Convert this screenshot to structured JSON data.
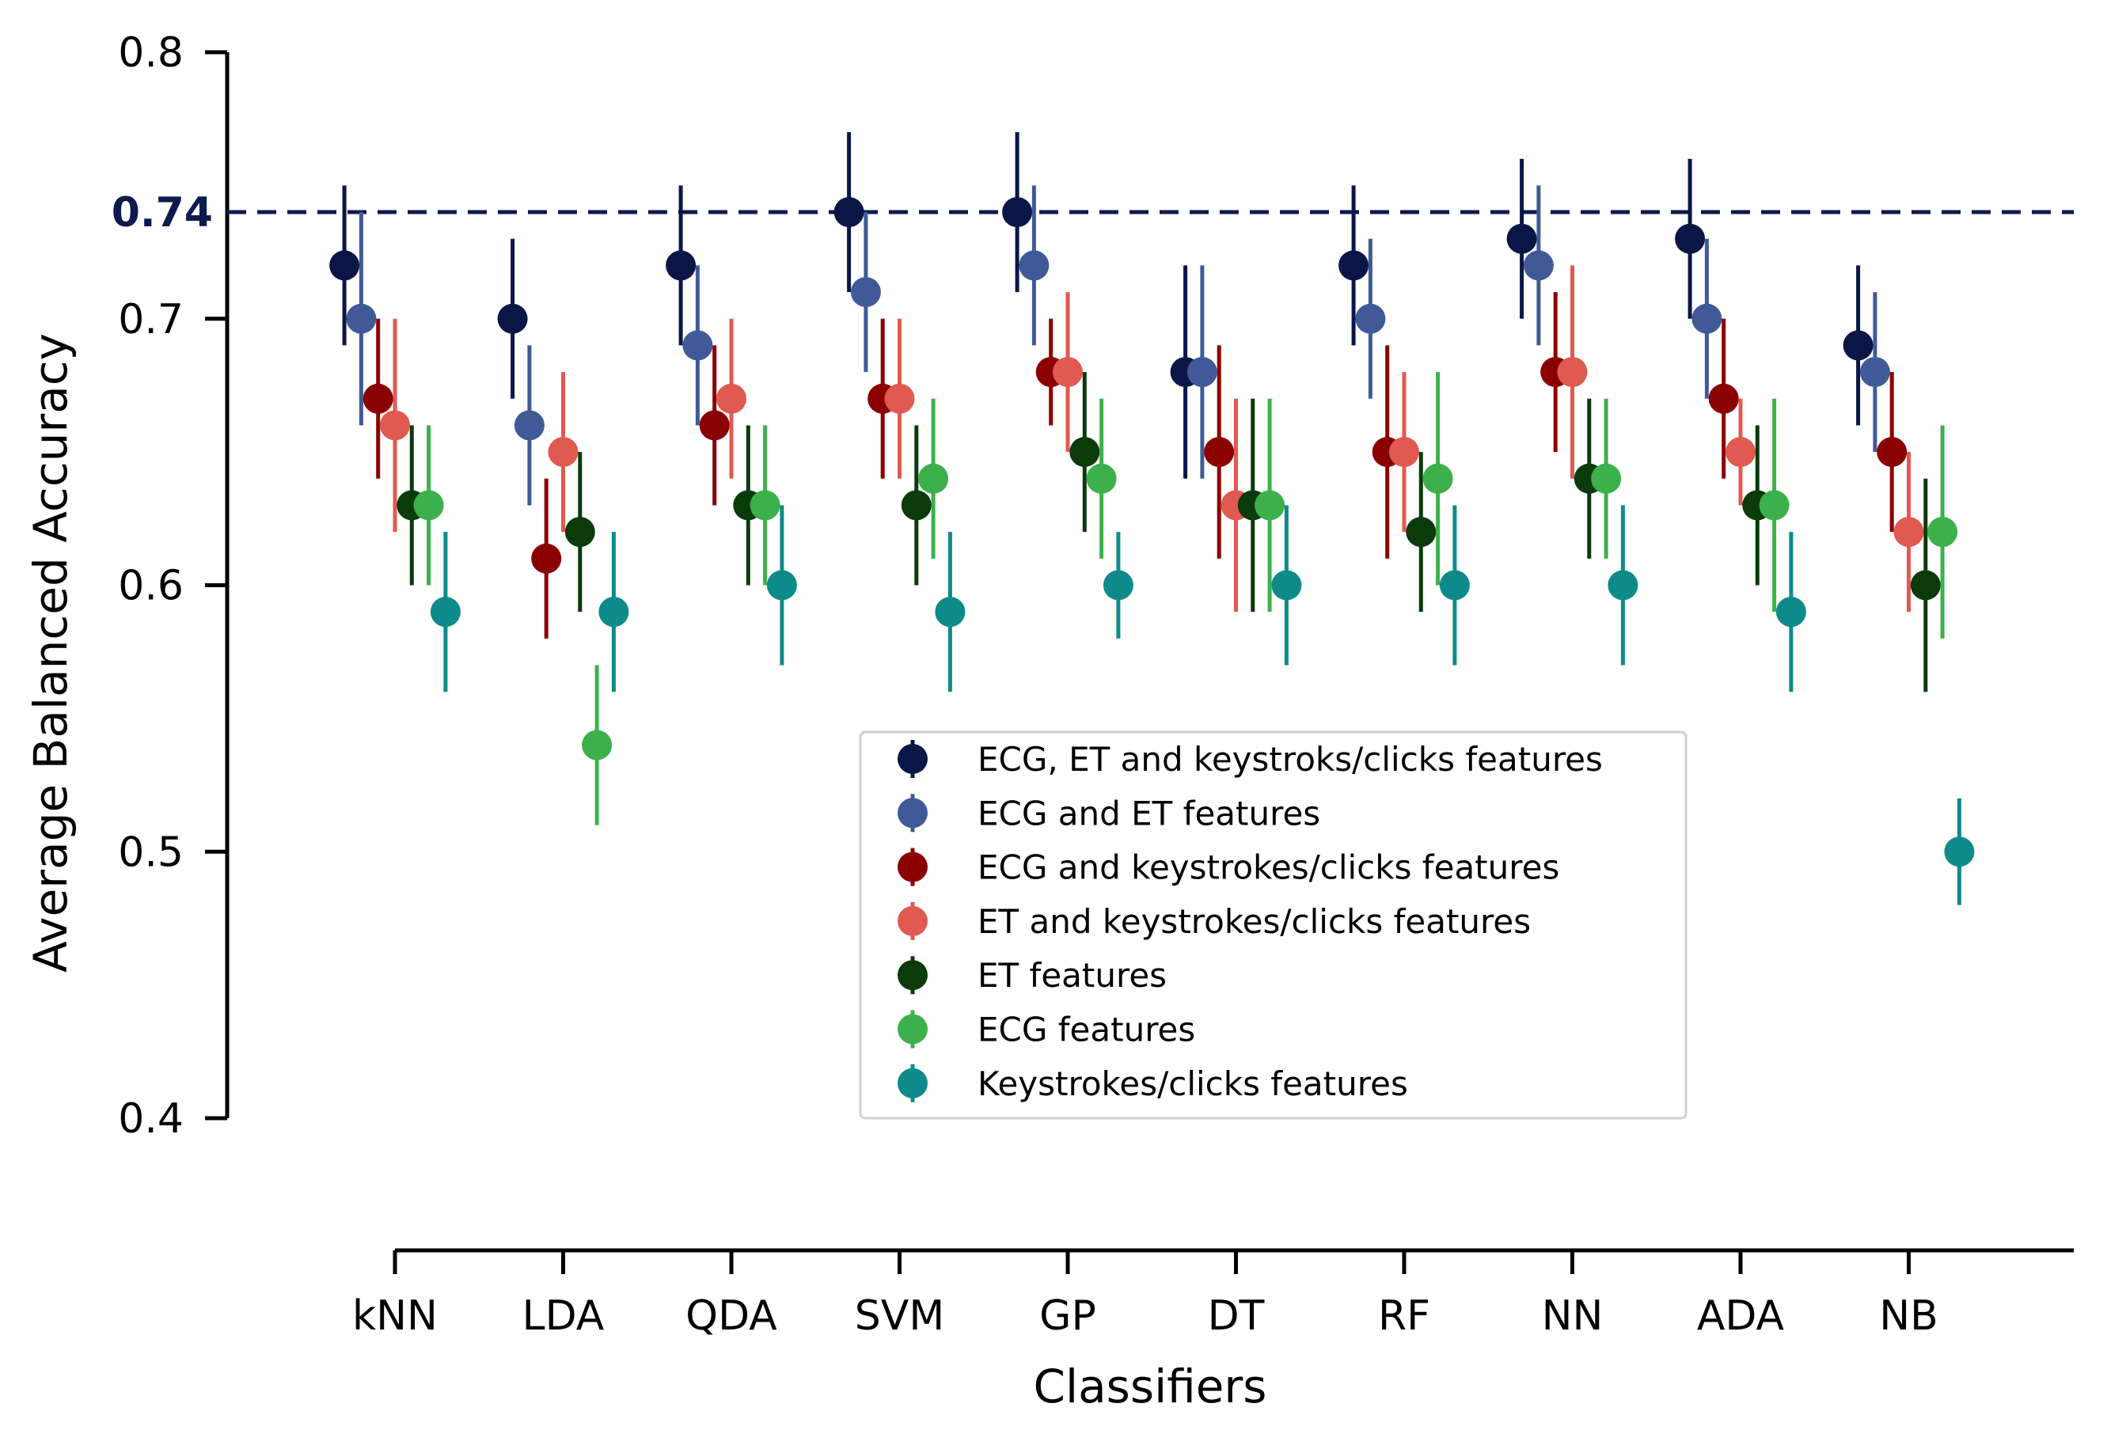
{
  "chart_data": {
    "type": "scatter",
    "subtype": "point-with-error-bars",
    "title": "",
    "xlabel": "Classifiers",
    "ylabel": "Average Balanced Accuracy",
    "ylim": [
      0.4,
      0.8
    ],
    "y_ticks": [
      "0.4",
      "0.5",
      "0.6",
      "0.7",
      "0.8"
    ],
    "grid": false,
    "legend_position": "center-right",
    "categories": [
      "kNN",
      "LDA",
      "QDA",
      "SVM",
      "GP",
      "DT",
      "RF",
      "NN",
      "ADA",
      "NB"
    ],
    "reference_line": {
      "value": 0.74,
      "label": "0.74",
      "color": "#0d1a4d",
      "style": "dashed"
    },
    "series": [
      {
        "name": "ECG, ET and keystroks/clicks features",
        "color": "#0a1646",
        "values": [
          0.72,
          0.7,
          0.72,
          0.74,
          0.74,
          0.68,
          0.72,
          0.73,
          0.73,
          0.69
        ],
        "errors": [
          0.03,
          0.03,
          0.03,
          0.03,
          0.03,
          0.04,
          0.03,
          0.03,
          0.03,
          0.03
        ]
      },
      {
        "name": "ECG and ET features",
        "color": "#3f5a96",
        "values": [
          0.7,
          0.66,
          0.69,
          0.71,
          0.72,
          0.68,
          0.7,
          0.72,
          0.7,
          0.68
        ],
        "errors": [
          0.04,
          0.03,
          0.03,
          0.03,
          0.03,
          0.04,
          0.03,
          0.03,
          0.03,
          0.03
        ]
      },
      {
        "name": "ECG and keystrokes/clicks features",
        "color": "#8b0000",
        "values": [
          0.67,
          0.61,
          0.66,
          0.67,
          0.68,
          0.65,
          0.65,
          0.68,
          0.67,
          0.65
        ],
        "errors": [
          0.03,
          0.03,
          0.03,
          0.03,
          0.02,
          0.04,
          0.04,
          0.03,
          0.03,
          0.03
        ]
      },
      {
        "name": "ET and keystrokes/clicks features",
        "color": "#e05a52",
        "values": [
          0.66,
          0.65,
          0.67,
          0.67,
          0.68,
          0.63,
          0.65,
          0.68,
          0.65,
          0.62
        ],
        "errors": [
          0.04,
          0.03,
          0.03,
          0.03,
          0.03,
          0.04,
          0.03,
          0.04,
          0.02,
          0.03
        ]
      },
      {
        "name": "ET features",
        "color": "#0b3a0b",
        "values": [
          0.63,
          0.62,
          0.63,
          0.63,
          0.65,
          0.63,
          0.62,
          0.64,
          0.63,
          0.6
        ],
        "errors": [
          0.03,
          0.03,
          0.03,
          0.03,
          0.03,
          0.04,
          0.03,
          0.03,
          0.03,
          0.04
        ]
      },
      {
        "name": "ECG features",
        "color": "#3cb04b",
        "values": [
          0.63,
          0.54,
          0.63,
          0.64,
          0.64,
          0.63,
          0.64,
          0.64,
          0.63,
          0.62
        ],
        "errors": [
          0.03,
          0.03,
          0.03,
          0.03,
          0.03,
          0.04,
          0.04,
          0.03,
          0.04,
          0.04
        ]
      },
      {
        "name": "Keystrokes/clicks features",
        "color": "#0e8a8a",
        "values": [
          0.59,
          0.59,
          0.6,
          0.59,
          0.6,
          0.6,
          0.6,
          0.6,
          0.59,
          0.5
        ],
        "errors": [
          0.03,
          0.03,
          0.03,
          0.03,
          0.02,
          0.03,
          0.03,
          0.03,
          0.03,
          0.02
        ]
      }
    ]
  }
}
